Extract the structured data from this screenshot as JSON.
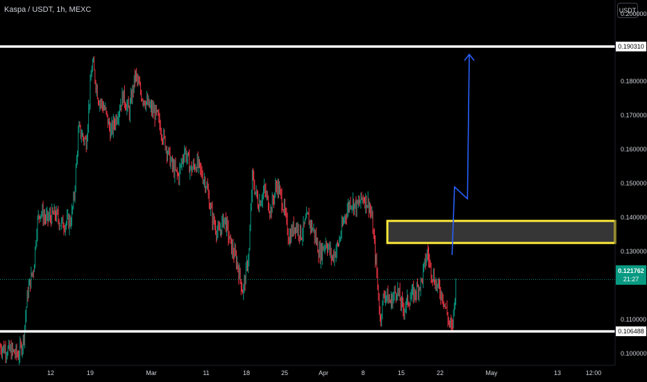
{
  "header": {
    "title": "Kaspa / USDT, 1h, MEXC",
    "currency_button": "USDT"
  },
  "colors": {
    "background": "#000000",
    "up": "#089981",
    "down": "#f23645",
    "level_line": "#ffffff",
    "zone_border": "#ffeb3b",
    "zone_fill": "#363636",
    "arrow": "#2962ff",
    "price_badge": "#089981"
  },
  "chart_data": {
    "type": "candlestick",
    "symbol": "Kaspa / USDT",
    "interval": "1h",
    "exchange": "MEXC",
    "ylim": [
      0.0965,
      0.204
    ],
    "y_ticks": [
      "0.200000",
      "0.180000",
      "0.170000",
      "0.160000",
      "0.150000",
      "0.140000",
      "0.130000",
      "0.110000",
      "0.100000"
    ],
    "x_ticks": [
      "12",
      "19",
      "Mar",
      "11",
      "18",
      "25",
      "Apr",
      "8",
      "15",
      "22",
      "May",
      "13",
      "12:00"
    ],
    "levels": [
      {
        "value": 0.19031,
        "label": "0.190310"
      },
      {
        "value": 0.106488,
        "label": "0.106488"
      }
    ],
    "zone": {
      "low": 0.1325,
      "high": 0.139
    },
    "last_price": {
      "value": 0.121762,
      "label": "0.121762",
      "countdown": "21:27"
    },
    "projection": [
      {
        "t": 0.735,
        "y": 0.129
      },
      {
        "t": 0.739,
        "y": 0.149
      },
      {
        "t": 0.76,
        "y": 0.1455
      },
      {
        "t": 0.763,
        "y": 0.188
      }
    ],
    "price_path": [
      [
        0.0,
        0.102
      ],
      [
        0.01,
        0.1012
      ],
      [
        0.02,
        0.1005
      ],
      [
        0.03,
        0.0995
      ],
      [
        0.038,
        0.104
      ],
      [
        0.045,
        0.118
      ],
      [
        0.055,
        0.1255
      ],
      [
        0.06,
        0.138
      ],
      [
        0.065,
        0.142
      ],
      [
        0.075,
        0.1395
      ],
      [
        0.09,
        0.141
      ],
      [
        0.1,
        0.138
      ],
      [
        0.115,
        0.139
      ],
      [
        0.12,
        0.145
      ],
      [
        0.128,
        0.166
      ],
      [
        0.14,
        0.162
      ],
      [
        0.15,
        0.186
      ],
      [
        0.16,
        0.175
      ],
      [
        0.17,
        0.172
      ],
      [
        0.18,
        0.165
      ],
      [
        0.19,
        0.17
      ],
      [
        0.2,
        0.176
      ],
      [
        0.21,
        0.171
      ],
      [
        0.22,
        0.182
      ],
      [
        0.23,
        0.176
      ],
      [
        0.245,
        0.172
      ],
      [
        0.255,
        0.17
      ],
      [
        0.265,
        0.164
      ],
      [
        0.28,
        0.155
      ],
      [
        0.29,
        0.152
      ],
      [
        0.3,
        0.16
      ],
      [
        0.31,
        0.154
      ],
      [
        0.32,
        0.156
      ],
      [
        0.335,
        0.15
      ],
      [
        0.345,
        0.14
      ],
      [
        0.355,
        0.135
      ],
      [
        0.365,
        0.14
      ],
      [
        0.375,
        0.132
      ],
      [
        0.385,
        0.127
      ],
      [
        0.395,
        0.118
      ],
      [
        0.405,
        0.13
      ],
      [
        0.41,
        0.152
      ],
      [
        0.42,
        0.144
      ],
      [
        0.43,
        0.148
      ],
      [
        0.44,
        0.142
      ],
      [
        0.45,
        0.15
      ],
      [
        0.46,
        0.144
      ],
      [
        0.47,
        0.134
      ],
      [
        0.48,
        0.138
      ],
      [
        0.49,
        0.135
      ],
      [
        0.5,
        0.14
      ],
      [
        0.51,
        0.136
      ],
      [
        0.52,
        0.129
      ],
      [
        0.53,
        0.133
      ],
      [
        0.54,
        0.128
      ],
      [
        0.55,
        0.132
      ],
      [
        0.56,
        0.14
      ],
      [
        0.57,
        0.145
      ],
      [
        0.58,
        0.143
      ],
      [
        0.59,
        0.146
      ],
      [
        0.6,
        0.144
      ],
      [
        0.605,
        0.139
      ],
      [
        0.612,
        0.125
      ],
      [
        0.618,
        0.11
      ],
      [
        0.625,
        0.118
      ],
      [
        0.635,
        0.115
      ],
      [
        0.645,
        0.119
      ],
      [
        0.655,
        0.113
      ],
      [
        0.665,
        0.116
      ],
      [
        0.675,
        0.118
      ],
      [
        0.685,
        0.121
      ],
      [
        0.695,
        0.13
      ],
      [
        0.7,
        0.125
      ],
      [
        0.71,
        0.12
      ],
      [
        0.72,
        0.117
      ],
      [
        0.73,
        0.109
      ],
      [
        0.735,
        0.107
      ],
      [
        0.742,
        0.1218
      ]
    ]
  }
}
